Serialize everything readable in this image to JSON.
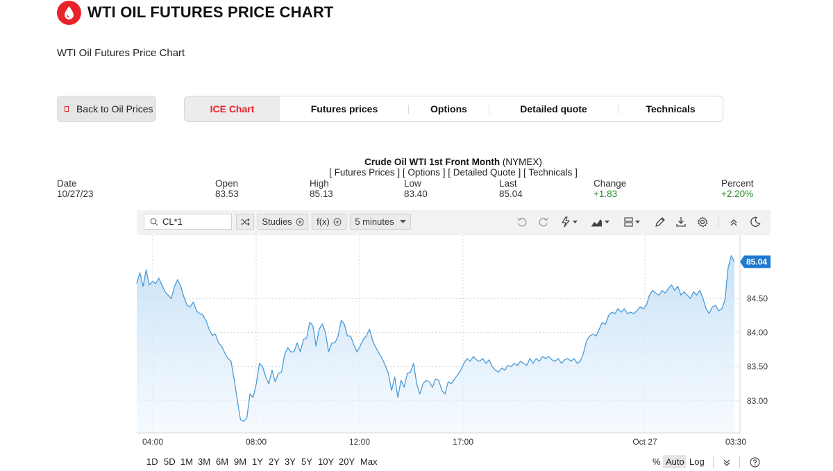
{
  "header": {
    "title": "WTI OIL FUTURES PRICE CHART",
    "subtitle": "WTI Oil Futures Price Chart",
    "logo_icon": "oil-drop-icon",
    "brand_color": "#e8232a"
  },
  "back_button": {
    "label": "Back to Oil Prices"
  },
  "tabs": [
    {
      "label": "ICE Chart",
      "active": true
    },
    {
      "label": "Futures prices",
      "active": false
    },
    {
      "label": "Options",
      "active": false
    },
    {
      "label": "Detailed quote",
      "active": false
    },
    {
      "label": "Technicals",
      "active": false
    }
  ],
  "quote": {
    "instrument": "Crude Oil WTI 1st Front Month",
    "exchange": "(NYMEX)",
    "links": "[ Futures Prices ] [ Options ] [ Detailed Quote ] [ Technicals ]",
    "fields": {
      "date": {
        "label": "Date",
        "value": "10/27/23"
      },
      "open": {
        "label": "Open",
        "value": "83.53"
      },
      "high": {
        "label": "High",
        "value": "85.13"
      },
      "low": {
        "label": "Low",
        "value": "83.40"
      },
      "last": {
        "label": "Last",
        "value": "85.04"
      },
      "change": {
        "label": "Change",
        "value": "+1.83"
      },
      "percent": {
        "label": "Percent",
        "value": "+2.20%"
      }
    },
    "positive_color": "#2a8a2a"
  },
  "toolbar": {
    "symbol": "CL*1",
    "studies_label": "Studies",
    "fx_label": "f(x)",
    "interval_label": "5 minutes",
    "icons": [
      "search-icon",
      "compare-icon",
      "undo-icon",
      "redo-icon",
      "drawing-tools-icon",
      "chart-type-icon",
      "layout-icon",
      "pencil-icon",
      "download-icon",
      "settings-icon",
      "collapse-icon",
      "dark-mode-icon"
    ]
  },
  "range_bar": {
    "ranges": [
      "1D",
      "5D",
      "1M",
      "3M",
      "6M",
      "9M",
      "1Y",
      "2Y",
      "3Y",
      "5Y",
      "10Y",
      "20Y",
      "Max"
    ],
    "scale_options": [
      "%",
      "Auto",
      "Log"
    ],
    "active_scale": "Auto"
  },
  "chart_data": {
    "type": "area",
    "title": "",
    "xlabel": "",
    "ylabel": "",
    "x_ticks": [
      "04:00",
      "08:00",
      "12:00",
      "17:00",
      "Oct 27",
      "03:30"
    ],
    "y_ticks": [
      "83.00",
      "83.50",
      "84.00",
      "84.50"
    ],
    "ylim": [
      82.53,
      85.43
    ],
    "last_price_label": "85.04",
    "grid": true,
    "line_color": "#4a9ad6",
    "series": [
      {
        "values": [
          84.72,
          84.88,
          84.68,
          84.92,
          84.7,
          84.75,
          84.72,
          84.8,
          84.7,
          84.6,
          84.55,
          84.5,
          84.68,
          84.78,
          84.68,
          84.52,
          84.4,
          84.38,
          84.45,
          84.32,
          84.28,
          84.26,
          84.18,
          84.05,
          83.96,
          83.98,
          83.85,
          83.8,
          83.7,
          83.62,
          83.58,
          83.3,
          83.0,
          82.72,
          82.7,
          82.75,
          83.1,
          83.05,
          83.25,
          83.55,
          83.5,
          83.35,
          83.25,
          83.45,
          83.28,
          83.4,
          83.42,
          83.68,
          83.78,
          83.72,
          83.72,
          83.85,
          83.72,
          83.9,
          83.92,
          84.15,
          84.1,
          83.8,
          84.05,
          84.13,
          84.0,
          83.72,
          83.85,
          83.85,
          83.95,
          84.18,
          84.12,
          83.95,
          83.95,
          83.82,
          83.72,
          83.8,
          83.9,
          83.95,
          84.05,
          83.88,
          83.78,
          83.7,
          83.62,
          83.52,
          83.4,
          83.15,
          83.35,
          83.05,
          83.3,
          83.2,
          83.4,
          83.42,
          83.55,
          83.25,
          83.1,
          83.25,
          83.3,
          83.28,
          83.2,
          83.32,
          83.3,
          83.15,
          83.1,
          83.28,
          83.25,
          83.32,
          83.38,
          83.45,
          83.55,
          83.62,
          83.58,
          83.65,
          83.6,
          83.58,
          83.62,
          83.55,
          83.6,
          83.5,
          83.45,
          83.42,
          83.48,
          83.45,
          83.52,
          83.5,
          83.55,
          83.52,
          83.58,
          83.55,
          83.52,
          83.62,
          83.55,
          83.62,
          83.58,
          83.65,
          83.62,
          83.65,
          83.6,
          83.58,
          83.62,
          83.55,
          83.6,
          83.62,
          83.58,
          83.62,
          83.55,
          83.58,
          83.7,
          83.88,
          83.95,
          83.98,
          83.95,
          84.05,
          84.15,
          84.12,
          84.25,
          84.3,
          84.28,
          84.35,
          84.3,
          84.35,
          84.28,
          84.3,
          84.28,
          84.32,
          84.38,
          84.35,
          84.4,
          84.55,
          84.62,
          84.58,
          84.55,
          84.62,
          84.58,
          84.65,
          84.7,
          84.62,
          84.68,
          84.55,
          84.6,
          84.55,
          84.5,
          84.6,
          84.55,
          84.62,
          84.5,
          84.35,
          84.28,
          84.38,
          84.4,
          84.32,
          84.35,
          84.48,
          84.95,
          85.13,
          85.04
        ]
      }
    ]
  }
}
